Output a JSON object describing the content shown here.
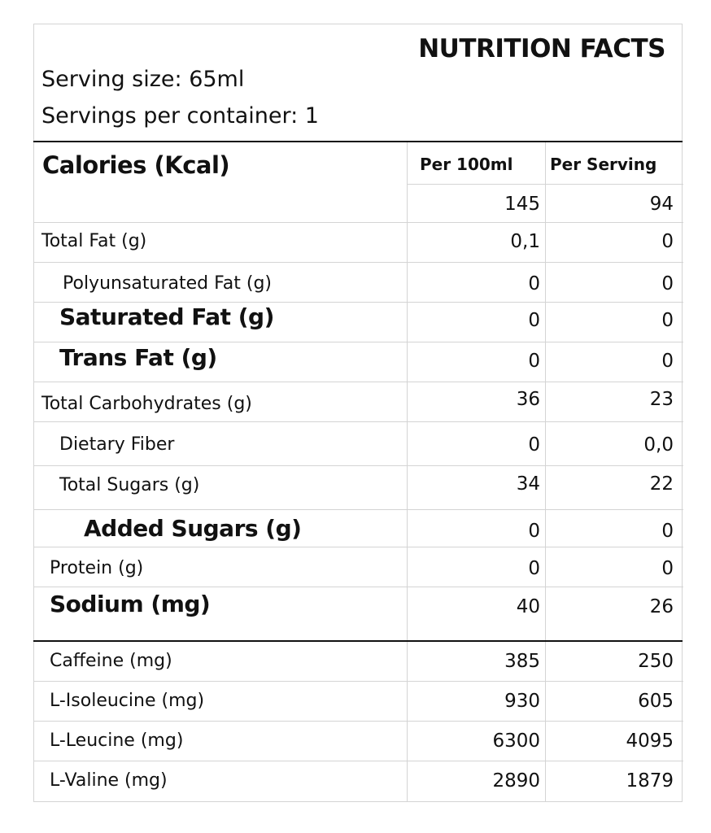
{
  "title": "NUTRITION FACTS",
  "serving_size": "Serving size: 65ml",
  "servings_per_container": "Servings per container: 1",
  "calories_label": "Calories (Kcal)",
  "columns": {
    "per100": "Per 100ml",
    "per_serving": "Per Serving"
  },
  "calories": {
    "per100": "145",
    "per_serving": "94"
  },
  "rows": [
    {
      "name": "Total Fat (g)",
      "per100": "0,1",
      "per_serving": "0"
    },
    {
      "name": "Polyunsaturated Fat (g)",
      "per100": "0",
      "per_serving": "0"
    },
    {
      "name": "Saturated Fat (g)",
      "per100": "0",
      "per_serving": "0"
    },
    {
      "name": "Trans Fat (g)",
      "per100": "0",
      "per_serving": "0"
    },
    {
      "name": "Total Carbohydrates (g)",
      "per100": "36",
      "per_serving": "23"
    },
    {
      "name": "Dietary Fiber",
      "per100": "0",
      "per_serving": "0,0"
    },
    {
      "name": "Total Sugars (g)",
      "per100": "34",
      "per_serving": "22"
    },
    {
      "name": "Added Sugars (g)",
      "per100": "0",
      "per_serving": "0"
    },
    {
      "name": "Protein (g)",
      "per100": "0",
      "per_serving": "0"
    },
    {
      "name": "Sodium (mg)",
      "per100": "40",
      "per_serving": "26"
    }
  ],
  "extras": [
    {
      "name": "Caffeine (mg)",
      "per100": "385",
      "per_serving": "250"
    },
    {
      "name": "L-Isoleucine (mg)",
      "per100": "930",
      "per_serving": "605"
    },
    {
      "name": "L-Leucine (mg)",
      "per100": "6300",
      "per_serving": "4095"
    },
    {
      "name": "L-Valine (mg)",
      "per100": "2890",
      "per_serving": "1879"
    }
  ]
}
